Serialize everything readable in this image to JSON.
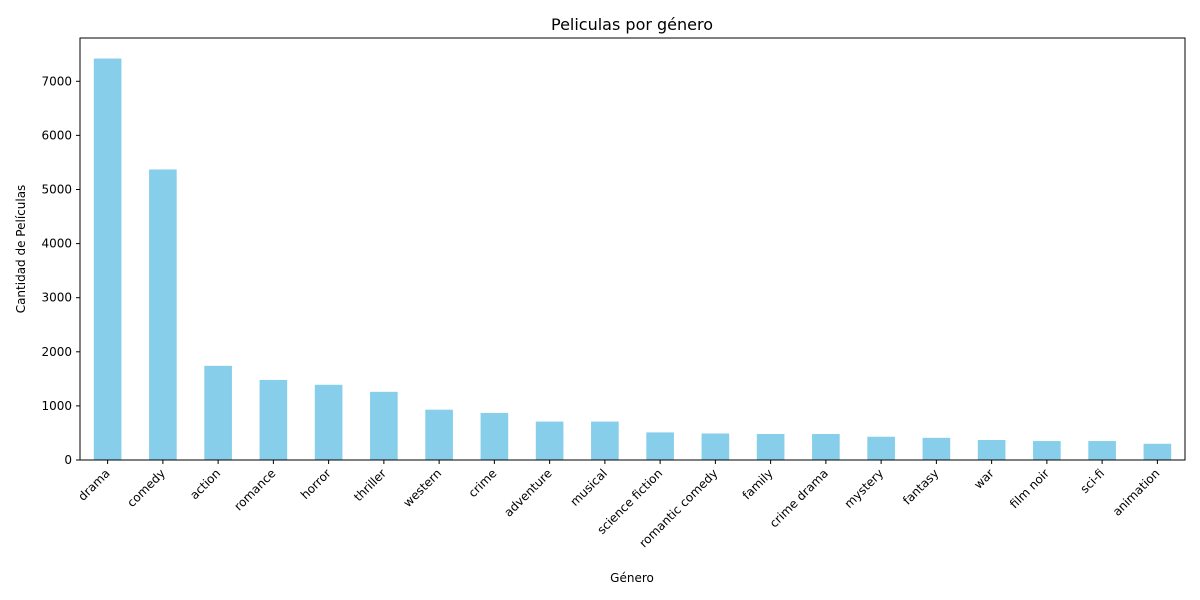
{
  "chart_data": {
    "type": "bar",
    "title": "Peliculas por género",
    "xlabel": "Género",
    "ylabel": "Cantidad de Películas",
    "categories": [
      "drama",
      "comedy",
      "action",
      "romance",
      "horror",
      "thriller",
      "western",
      "crime",
      "adventure",
      "musical",
      "science fiction",
      "romantic comedy",
      "family",
      "crime drama",
      "mystery",
      "fantasy",
      "war",
      "film noir",
      "sci-fi",
      "animation"
    ],
    "values": [
      7420,
      5370,
      1740,
      1480,
      1390,
      1260,
      930,
      870,
      710,
      710,
      510,
      490,
      480,
      480,
      430,
      410,
      370,
      350,
      350,
      300
    ],
    "ylim": [
      0,
      7800
    ],
    "yticks": [
      0,
      1000,
      2000,
      3000,
      4000,
      5000,
      6000,
      7000
    ],
    "bar_color": "#87CEEB",
    "grid": false
  }
}
